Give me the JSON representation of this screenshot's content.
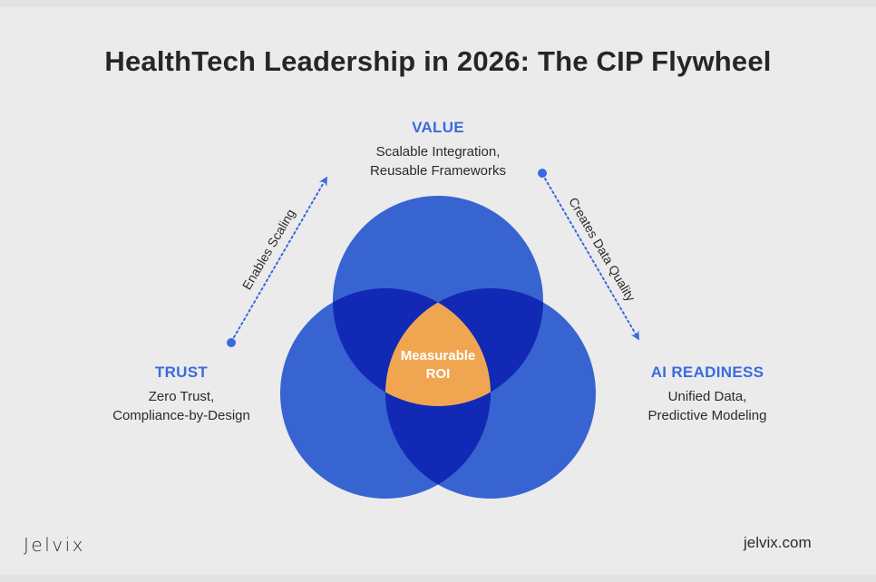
{
  "title": "HealthTech Leadership in 2026: The CIP Flywheel",
  "nodes": {
    "value": {
      "heading": "VALUE",
      "description": "Scalable Integration,\nReusable Frameworks"
    },
    "trust": {
      "heading": "TRUST",
      "description": "Zero Trust,\nCompliance-by-Design"
    },
    "ai_readiness": {
      "heading": "AI READINESS",
      "description": "Unified Data,\nPredictive Modeling"
    }
  },
  "edges": {
    "trust_to_value": "Enables Scaling",
    "value_to_ai": "Creates Data Quality"
  },
  "center": {
    "label": "Measurable\nROI"
  },
  "colors": {
    "accent": "#3a6ae0",
    "circle": "#3864d2",
    "overlap": "#1129b5",
    "center": "#f0a651",
    "background": "#ebebeb",
    "text": "#26262a"
  },
  "footer": {
    "brand": "Jelvix",
    "website": "jelvix.com"
  }
}
